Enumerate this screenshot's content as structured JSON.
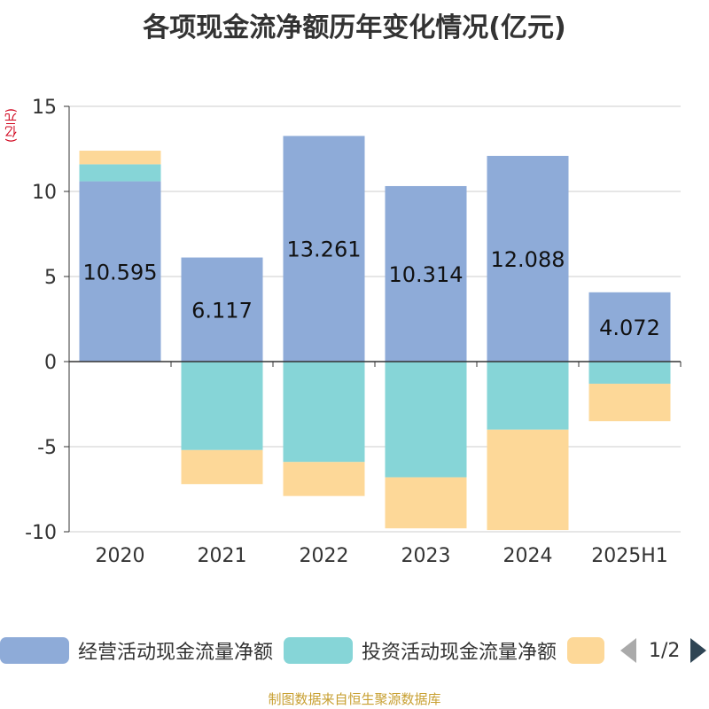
{
  "title": "各项现金流净额历年变化情况(亿元)",
  "unit_label": "(亿元)",
  "source": "制图数据来自恒生聚源数据库",
  "legend": {
    "items": [
      {
        "label": "经营活动现金流量净额",
        "color": "#8eabd8"
      },
      {
        "label": "投资活动现金流量净额",
        "color": "#86d5d7"
      },
      {
        "label": "",
        "color": "#fdd898"
      }
    ],
    "page": "1/2"
  },
  "chart_data": {
    "type": "bar",
    "stacked": true,
    "categories": [
      "2020",
      "2021",
      "2022",
      "2023",
      "2024",
      "2025H1"
    ],
    "series": [
      {
        "name": "经营活动现金流量净额",
        "color": "#8eabd8",
        "values": [
          10.595,
          6.117,
          13.261,
          10.314,
          12.088,
          4.072
        ],
        "labels": [
          "10.595",
          "6.117",
          "13.261",
          "10.314",
          "12.088",
          "4.072"
        ]
      },
      {
        "name": "投资活动现金流量净额",
        "color": "#86d5d7",
        "values": [
          1.0,
          -5.2,
          -5.9,
          -6.8,
          -4.0,
          -1.3
        ]
      },
      {
        "name": "",
        "color": "#fdd898",
        "values": [
          0.8,
          -2.0,
          -2.0,
          -3.0,
          -5.9,
          -2.2
        ]
      }
    ],
    "ylim": [
      -10,
      15
    ],
    "yticks": [
      15,
      10,
      5,
      0,
      -5,
      -10
    ],
    "grid": true
  }
}
